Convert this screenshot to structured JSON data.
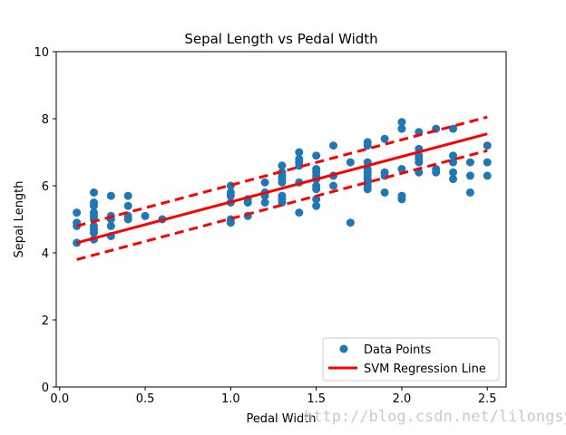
{
  "chart_data": {
    "type": "scatter",
    "title": "Sepal Length vs Pedal Width",
    "xlabel": "Pedal Width",
    "ylabel": "Sepal Length",
    "xlim": [
      -0.02,
      2.61
    ],
    "ylim": [
      0,
      10
    ],
    "xticks": [
      0.0,
      0.5,
      1.0,
      1.5,
      2.0,
      2.5
    ],
    "xtick_labels": [
      "0.0",
      "0.5",
      "1.0",
      "1.5",
      "2.0",
      "2.5"
    ],
    "yticks": [
      0,
      2,
      4,
      6,
      8,
      10
    ],
    "ytick_labels": [
      "0",
      "2",
      "4",
      "6",
      "8",
      "10"
    ],
    "grid": false,
    "legend_position": "lower-right",
    "series": [
      {
        "name": "Data Points",
        "kind": "scatter",
        "color": "#1f77b4",
        "points": [
          [
            0.1,
            4.3
          ],
          [
            0.1,
            4.8
          ],
          [
            0.1,
            4.9
          ],
          [
            0.1,
            5.2
          ],
          [
            0.2,
            4.4
          ],
          [
            0.2,
            4.6
          ],
          [
            0.2,
            4.7
          ],
          [
            0.2,
            4.8
          ],
          [
            0.2,
            5.0
          ],
          [
            0.2,
            5.1
          ],
          [
            0.2,
            5.2
          ],
          [
            0.2,
            5.4
          ],
          [
            0.2,
            5.5
          ],
          [
            0.2,
            5.8
          ],
          [
            0.3,
            4.5
          ],
          [
            0.3,
            4.8
          ],
          [
            0.3,
            5.0
          ],
          [
            0.3,
            5.1
          ],
          [
            0.3,
            5.7
          ],
          [
            0.4,
            5.0
          ],
          [
            0.4,
            5.1
          ],
          [
            0.4,
            5.4
          ],
          [
            0.4,
            5.7
          ],
          [
            0.5,
            5.1
          ],
          [
            0.6,
            5.0
          ],
          [
            1.0,
            4.9
          ],
          [
            1.0,
            5.0
          ],
          [
            1.0,
            5.5
          ],
          [
            1.0,
            5.7
          ],
          [
            1.0,
            5.8
          ],
          [
            1.0,
            6.0
          ],
          [
            1.1,
            5.1
          ],
          [
            1.1,
            5.5
          ],
          [
            1.1,
            5.6
          ],
          [
            1.2,
            5.5
          ],
          [
            1.2,
            5.7
          ],
          [
            1.2,
            5.8
          ],
          [
            1.2,
            6.1
          ],
          [
            1.3,
            5.5
          ],
          [
            1.3,
            5.6
          ],
          [
            1.3,
            5.7
          ],
          [
            1.3,
            6.1
          ],
          [
            1.3,
            6.2
          ],
          [
            1.3,
            6.3
          ],
          [
            1.3,
            6.4
          ],
          [
            1.3,
            6.6
          ],
          [
            1.4,
            5.2
          ],
          [
            1.4,
            6.1
          ],
          [
            1.4,
            6.6
          ],
          [
            1.4,
            6.7
          ],
          [
            1.4,
            6.8
          ],
          [
            1.4,
            7.0
          ],
          [
            1.5,
            5.4
          ],
          [
            1.5,
            5.6
          ],
          [
            1.5,
            5.9
          ],
          [
            1.5,
            6.0
          ],
          [
            1.5,
            6.2
          ],
          [
            1.5,
            6.3
          ],
          [
            1.5,
            6.4
          ],
          [
            1.5,
            6.5
          ],
          [
            1.5,
            6.9
          ],
          [
            1.6,
            6.0
          ],
          [
            1.6,
            6.3
          ],
          [
            1.6,
            7.2
          ],
          [
            1.7,
            4.9
          ],
          [
            1.7,
            6.7
          ],
          [
            1.8,
            5.9
          ],
          [
            1.8,
            6.0
          ],
          [
            1.8,
            6.1
          ],
          [
            1.8,
            6.2
          ],
          [
            1.8,
            6.3
          ],
          [
            1.8,
            6.4
          ],
          [
            1.8,
            6.5
          ],
          [
            1.8,
            6.7
          ],
          [
            1.8,
            7.2
          ],
          [
            1.8,
            7.3
          ],
          [
            1.9,
            5.8
          ],
          [
            1.9,
            6.3
          ],
          [
            1.9,
            6.4
          ],
          [
            1.9,
            7.4
          ],
          [
            2.0,
            5.6
          ],
          [
            2.0,
            5.7
          ],
          [
            2.0,
            6.5
          ],
          [
            2.0,
            7.7
          ],
          [
            2.0,
            7.9
          ],
          [
            2.1,
            6.4
          ],
          [
            2.1,
            6.7
          ],
          [
            2.1,
            6.8
          ],
          [
            2.1,
            6.9
          ],
          [
            2.1,
            7.1
          ],
          [
            2.1,
            7.6
          ],
          [
            2.2,
            6.4
          ],
          [
            2.2,
            6.5
          ],
          [
            2.2,
            7.7
          ],
          [
            2.3,
            6.2
          ],
          [
            2.3,
            6.4
          ],
          [
            2.3,
            6.7
          ],
          [
            2.3,
            6.9
          ],
          [
            2.3,
            7.7
          ],
          [
            2.4,
            5.8
          ],
          [
            2.4,
            6.3
          ],
          [
            2.4,
            6.7
          ],
          [
            2.5,
            6.3
          ],
          [
            2.5,
            6.7
          ],
          [
            2.5,
            7.2
          ]
        ]
      },
      {
        "name": "SVM Regression Line",
        "kind": "line",
        "style": "solid",
        "color": "#ff0000",
        "x": [
          0.1,
          2.5
        ],
        "y": [
          4.3,
          7.55
        ]
      },
      {
        "name": "Upper Margin",
        "kind": "line",
        "style": "dashed",
        "color": "#ff0000",
        "x": [
          0.1,
          2.5
        ],
        "y": [
          4.8,
          8.05
        ]
      },
      {
        "name": "Lower Margin",
        "kind": "line",
        "style": "dashed",
        "color": "#ff0000",
        "x": [
          0.1,
          2.5
        ],
        "y": [
          3.8,
          7.05
        ]
      }
    ],
    "legend": [
      {
        "label": "Data Points",
        "marker": "circle",
        "color": "#1f77b4"
      },
      {
        "label": "SVM Regression Line",
        "marker": "line",
        "color": "#ff0000"
      }
    ]
  },
  "watermark": "http://blog.csdn.net/lilongsy"
}
